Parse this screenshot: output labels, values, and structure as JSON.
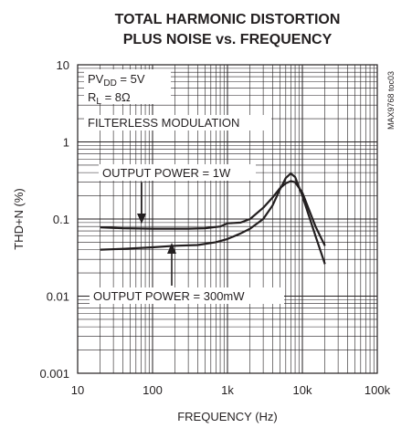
{
  "chart_data": {
    "type": "line",
    "title_lines": [
      "TOTAL HARMONIC DISTORTION",
      "PLUS NOISE vs. FREQUENCY"
    ],
    "xlabel": "FREQUENCY (Hz)",
    "ylabel": "THD+N (%)",
    "x_scale": "log",
    "y_scale": "log",
    "xlim": [
      10,
      100000
    ],
    "ylim": [
      0.001,
      10
    ],
    "x_ticks": [
      10,
      100,
      1000,
      10000,
      100000
    ],
    "x_tick_labels": [
      "10",
      "100",
      "1k",
      "10k",
      "100k"
    ],
    "y_ticks": [
      0.001,
      0.01,
      0.1,
      1,
      10
    ],
    "y_tick_labels": [
      "0.001",
      "0.01",
      "0.1",
      "1",
      "10"
    ],
    "grid": true,
    "conditions": {
      "pvdd_prefix": "PV",
      "pvdd_sub": "DD",
      "pvdd_value": " = 5V",
      "rl_prefix": "R",
      "rl_sub": "L",
      "rl_value": " = 8Ω",
      "modulation": "FILTERLESS MODULATION"
    },
    "figure_code": "MAX9768 toc03",
    "series": [
      {
        "name": "OUTPUT POWER = 1W",
        "x": [
          20,
          40,
          100,
          300,
          500,
          800,
          1000,
          1500,
          2000,
          3000,
          4000,
          5000,
          6000,
          7000,
          8000,
          10000,
          15000,
          20000
        ],
        "y": [
          0.078,
          0.076,
          0.075,
          0.075,
          0.076,
          0.08,
          0.088,
          0.09,
          0.1,
          0.14,
          0.19,
          0.25,
          0.29,
          0.31,
          0.3,
          0.22,
          0.08,
          0.045
        ]
      },
      {
        "name": "OUTPUT POWER = 300mW",
        "x": [
          20,
          40,
          100,
          200,
          400,
          700,
          1000,
          1500,
          2000,
          3000,
          4000,
          5000,
          6000,
          7000,
          8000,
          10000,
          15000,
          20000
        ],
        "y": [
          0.04,
          0.041,
          0.043,
          0.045,
          0.046,
          0.05,
          0.055,
          0.065,
          0.075,
          0.1,
          0.15,
          0.24,
          0.34,
          0.39,
          0.35,
          0.2,
          0.06,
          0.026
        ]
      }
    ]
  }
}
